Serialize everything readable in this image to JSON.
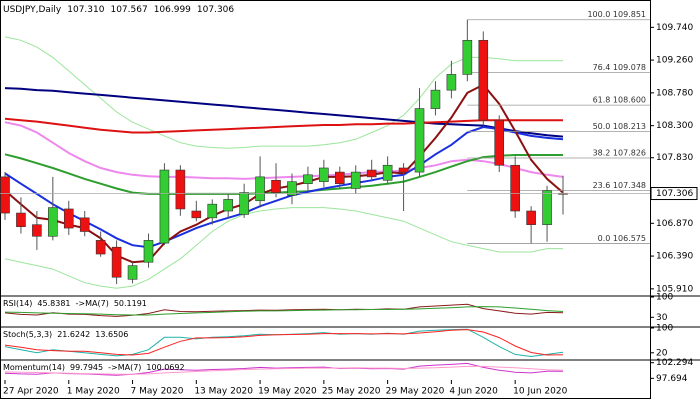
{
  "chart_data": [
    {
      "type": "candlestick",
      "title": "USDJPY,Daily",
      "header_values": [
        {
          "value": 107.31,
          "label": "107.310"
        },
        107.567,
        106.999,
        107.306
      ],
      "categories": [
        "27 Apr 2020",
        null,
        null,
        null,
        "1 May 2020",
        null,
        null,
        null,
        "7 May 2020",
        null,
        null,
        null,
        "13 May 2020",
        null,
        null,
        null,
        "19 May 2020",
        null,
        null,
        null,
        "25 May 2020",
        null,
        null,
        null,
        "29 May 2020",
        null,
        null,
        null,
        "4 Jun 2020",
        null,
        null,
        null,
        "10 Jun 2020",
        null,
        null,
        null
      ],
      "open": [
        107.55,
        107.02,
        106.85,
        106.68,
        107.08,
        106.95,
        106.62,
        106.52,
        106.05,
        106.3,
        106.58,
        107.65,
        107.05,
        106.95,
        107.05,
        107.0,
        107.2,
        107.5,
        107.28,
        107.45,
        107.48,
        107.62,
        107.38,
        107.65,
        107.5,
        107.68,
        107.62,
        108.55,
        108.82,
        109.05,
        109.55,
        108.38,
        107.72,
        107.05,
        106.85,
        107.31
      ],
      "high": [
        107.62,
        107.25,
        107.05,
        107.55,
        107.2,
        107.05,
        106.75,
        106.62,
        106.3,
        106.72,
        107.75,
        107.72,
        107.2,
        107.22,
        107.3,
        107.45,
        107.85,
        107.75,
        107.6,
        107.7,
        107.8,
        107.7,
        107.72,
        107.8,
        107.85,
        107.75,
        108.85,
        108.95,
        109.25,
        109.851,
        109.68,
        108.45,
        107.85,
        107.12,
        107.42,
        107.567
      ],
      "low": [
        106.92,
        106.72,
        106.48,
        106.62,
        106.7,
        106.68,
        106.38,
        105.98,
        105.99,
        106.22,
        106.55,
        106.98,
        106.9,
        106.85,
        106.95,
        106.95,
        107.1,
        107.25,
        107.15,
        107.35,
        107.4,
        107.38,
        107.3,
        107.48,
        107.45,
        107.05,
        107.55,
        108.45,
        108.7,
        108.95,
        108.3,
        107.62,
        106.95,
        106.575,
        106.6,
        106.999
      ],
      "close": [
        107.02,
        106.82,
        106.68,
        107.1,
        106.8,
        106.75,
        106.42,
        106.08,
        106.25,
        106.62,
        107.65,
        107.08,
        106.95,
        107.15,
        107.22,
        107.32,
        107.55,
        107.32,
        107.48,
        107.58,
        107.68,
        107.45,
        107.62,
        107.55,
        107.72,
        107.62,
        108.55,
        108.82,
        109.05,
        109.55,
        108.38,
        107.72,
        107.05,
        106.85,
        107.35,
        107.306
      ],
      "up_color": "#33cc33",
      "down_color": "#ee1111",
      "ylim": [
        105.82,
        110.14
      ],
      "yticks": [
        {
          "value": 109.74,
          "label": "109.740"
        },
        {
          "value": 109.26,
          "label": "109.260"
        },
        {
          "value": 108.78,
          "label": "108.780"
        },
        {
          "value": 108.3,
          "label": "108.300"
        },
        {
          "value": 107.83,
          "label": "107.830"
        },
        {
          "value": 106.87,
          "label": "106.870"
        },
        {
          "value": 106.39,
          "label": "106.390"
        },
        {
          "value": 105.91,
          "label": "105.910"
        }
      ],
      "last_price": 107.306,
      "fib_levels": [
        {
          "value": 109.851,
          "label": "100.0 109.851"
        },
        {
          "value": 109.078,
          "label": "76.4 109.078"
        },
        {
          "value": 108.6,
          "label": "61.8 108.600"
        },
        {
          "value": 108.213,
          "label": "50.0 108.213"
        },
        {
          "value": 107.826,
          "label": "38.2 107.826"
        },
        {
          "value": 107.348,
          "label": "23.6 107.348"
        },
        {
          "value": 106.575,
          "label": "0.0 106.575"
        }
      ],
      "series": [
        {
          "color": "#9be59b",
          "width": 1,
          "values": [
            109.6,
            109.55,
            109.45,
            109.3,
            109.1,
            108.9,
            108.7,
            108.5,
            108.35,
            108.25,
            108.15,
            108.05,
            108.0,
            107.98,
            107.97,
            107.98,
            108.0,
            108.0,
            108.0,
            108.0,
            108.02,
            108.05,
            108.1,
            108.2,
            108.3,
            108.45,
            108.7,
            109.0,
            109.2,
            109.3,
            109.3,
            109.28,
            109.25,
            109.25,
            109.25,
            109.25
          ]
        },
        {
          "color": "#9be59b",
          "width": 1,
          "values": [
            106.35,
            106.3,
            106.25,
            106.2,
            106.1,
            106.0,
            105.95,
            105.92,
            105.95,
            106.05,
            106.2,
            106.35,
            106.55,
            106.75,
            106.9,
            107.0,
            107.05,
            107.08,
            107.1,
            107.1,
            107.1,
            107.08,
            107.05,
            107.0,
            106.95,
            106.9,
            106.8,
            106.7,
            106.6,
            106.55,
            106.5,
            106.45,
            106.45,
            106.45,
            106.5,
            106.5
          ]
        },
        {
          "color": "#000080",
          "width": 2,
          "values": [
            108.85,
            108.84,
            108.82,
            108.81,
            108.79,
            108.77,
            108.75,
            108.73,
            108.71,
            108.69,
            108.67,
            108.65,
            108.63,
            108.61,
            108.59,
            108.57,
            108.55,
            108.53,
            108.51,
            108.49,
            108.47,
            108.45,
            108.43,
            108.41,
            108.39,
            108.37,
            108.35,
            108.33,
            108.32,
            108.31,
            108.3,
            108.26,
            108.22,
            108.19,
            108.16,
            108.14
          ]
        },
        {
          "color": "#dd1111",
          "width": 2,
          "values": [
            108.4,
            108.38,
            108.36,
            108.33,
            108.3,
            108.27,
            108.24,
            108.22,
            108.2,
            108.2,
            108.21,
            108.22,
            108.23,
            108.24,
            108.25,
            108.26,
            108.27,
            108.28,
            108.29,
            108.3,
            108.31,
            108.31,
            108.32,
            108.32,
            108.33,
            108.33,
            108.34,
            108.35,
            108.36,
            108.37,
            108.38,
            108.38,
            108.38,
            108.38,
            108.38,
            108.38
          ]
        },
        {
          "color": "#ee88ee",
          "width": 2,
          "values": [
            108.35,
            108.3,
            108.2,
            108.05,
            107.9,
            107.78,
            107.68,
            107.62,
            107.58,
            107.56,
            107.55,
            107.55,
            107.54,
            107.53,
            107.53,
            107.52,
            107.53,
            107.54,
            107.55,
            107.56,
            107.57,
            107.58,
            107.6,
            107.62,
            107.63,
            107.64,
            107.68,
            107.72,
            107.78,
            107.8,
            107.78,
            107.74,
            107.68,
            107.62,
            107.58,
            107.55
          ]
        },
        {
          "color": "#2e9e2e",
          "width": 2,
          "values": [
            107.88,
            107.82,
            107.75,
            107.68,
            107.6,
            107.52,
            107.45,
            107.38,
            107.32,
            107.3,
            107.3,
            107.3,
            107.3,
            107.3,
            107.3,
            107.3,
            107.31,
            107.32,
            107.33,
            107.34,
            107.36,
            107.38,
            107.4,
            107.42,
            107.45,
            107.48,
            107.55,
            107.62,
            107.7,
            107.78,
            107.84,
            107.86,
            107.87,
            107.87,
            107.87,
            107.87
          ]
        },
        {
          "color": "#1a2fe0",
          "width": 2,
          "values": [
            107.6,
            107.45,
            107.3,
            107.15,
            107.02,
            106.9,
            106.78,
            106.65,
            106.55,
            106.52,
            106.6,
            106.7,
            106.8,
            106.88,
            106.95,
            107.02,
            107.12,
            107.2,
            107.28,
            107.33,
            107.38,
            107.42,
            107.46,
            107.5,
            107.55,
            107.58,
            107.72,
            107.88,
            108.02,
            108.2,
            108.28,
            108.25,
            108.2,
            108.15,
            108.12,
            108.1
          ]
        },
        {
          "color": "#8b1010",
          "width": 2,
          "values": [
            107.35,
            107.15,
            106.95,
            106.92,
            106.85,
            106.8,
            106.65,
            106.4,
            106.3,
            106.32,
            106.58,
            106.75,
            106.85,
            106.98,
            107.08,
            107.15,
            107.3,
            107.38,
            107.42,
            107.48,
            107.55,
            107.55,
            107.56,
            107.58,
            107.62,
            107.6,
            107.85,
            108.12,
            108.42,
            108.78,
            108.9,
            108.62,
            108.22,
            107.8,
            107.52,
            107.32
          ]
        }
      ]
    },
    {
      "type": "line",
      "title": "RSI(14)",
      "ylim": [
        0,
        100
      ],
      "yticks": [
        100,
        30
      ],
      "series": [
        {
          "color": "#8b1a1a",
          "readout": 45.8381,
          "values": [
            45,
            40,
            38,
            46,
            41,
            40,
            36,
            33,
            37,
            43,
            56,
            50,
            49,
            51,
            52,
            53,
            55,
            54,
            56,
            57,
            58,
            56,
            58,
            57,
            59,
            58,
            66,
            69,
            72,
            75,
            60,
            52,
            44,
            41,
            47,
            45.8381
          ]
        },
        {
          "name": "->MA(7)",
          "color": "#2e9e2e",
          "readout": 50.1191,
          "values": [
            48,
            47,
            45,
            44,
            43,
            42,
            41,
            39,
            38,
            38,
            41,
            43,
            45,
            47,
            49,
            51,
            52,
            52,
            53,
            54,
            55,
            56,
            56,
            57,
            57,
            58,
            59,
            61,
            63,
            66,
            67,
            66,
            62,
            58,
            53,
            50.1191
          ]
        }
      ]
    },
    {
      "type": "line",
      "title": "Stoch(5,3,3)",
      "ylim": [
        0,
        100
      ],
      "yticks": [
        100,
        20
      ],
      "series": [
        {
          "color": "#20b2aa",
          "readout": 21.6242,
          "values": [
            40,
            30,
            20,
            30,
            25,
            20,
            15,
            10,
            15,
            30,
            70,
            70,
            65,
            70,
            72,
            75,
            80,
            78,
            80,
            82,
            85,
            80,
            82,
            80,
            83,
            80,
            90,
            93,
            95,
            96,
            70,
            40,
            15,
            8,
            15,
            21.6242
          ]
        },
        {
          "color": "#ff2222",
          "readout": 13.6506,
          "values": [
            45,
            38,
            30,
            27,
            25,
            25,
            20,
            15,
            13,
            18,
            38,
            57,
            68,
            68,
            69,
            72,
            76,
            78,
            79,
            80,
            82,
            82,
            82,
            81,
            82,
            81,
            84,
            88,
            93,
            95,
            87,
            69,
            42,
            21,
            13,
            13.6506
          ]
        }
      ]
    },
    {
      "type": "line",
      "title": "Momentum(14)",
      "ylim": [
        97.2,
        102.8
      ],
      "yticks": [
        102.294,
        97.694
      ],
      "series": [
        {
          "color": "#cc33cc",
          "readout": 99.7945,
          "values": [
            99.2,
            99.0,
            98.9,
            99.3,
            99.1,
            99.0,
            98.8,
            98.6,
            98.9,
            99.4,
            100.4,
            100.2,
            100.1,
            100.3,
            100.4,
            100.6,
            100.9,
            100.7,
            100.8,
            100.9,
            101.0,
            100.6,
            100.7,
            100.5,
            100.6,
            100.4,
            101.3,
            101.6,
            101.8,
            102.1,
            100.9,
            100.1,
            99.5,
            99.3,
            99.8,
            99.7945
          ]
        },
        {
          "name": "->MA(7)",
          "color": "#ff99cc",
          "readout": 100.0692,
          "values": [
            99.6,
            99.5,
            99.4,
            99.3,
            99.2,
            99.1,
            99.0,
            98.9,
            98.9,
            99.0,
            99.3,
            99.5,
            99.7,
            99.9,
            100.1,
            100.3,
            100.4,
            100.5,
            100.6,
            100.7,
            100.7,
            100.7,
            100.8,
            100.7,
            100.7,
            100.6,
            100.7,
            100.8,
            101.0,
            101.2,
            101.2,
            101.0,
            100.8,
            100.5,
            100.2,
            100.0692
          ]
        }
      ]
    }
  ]
}
